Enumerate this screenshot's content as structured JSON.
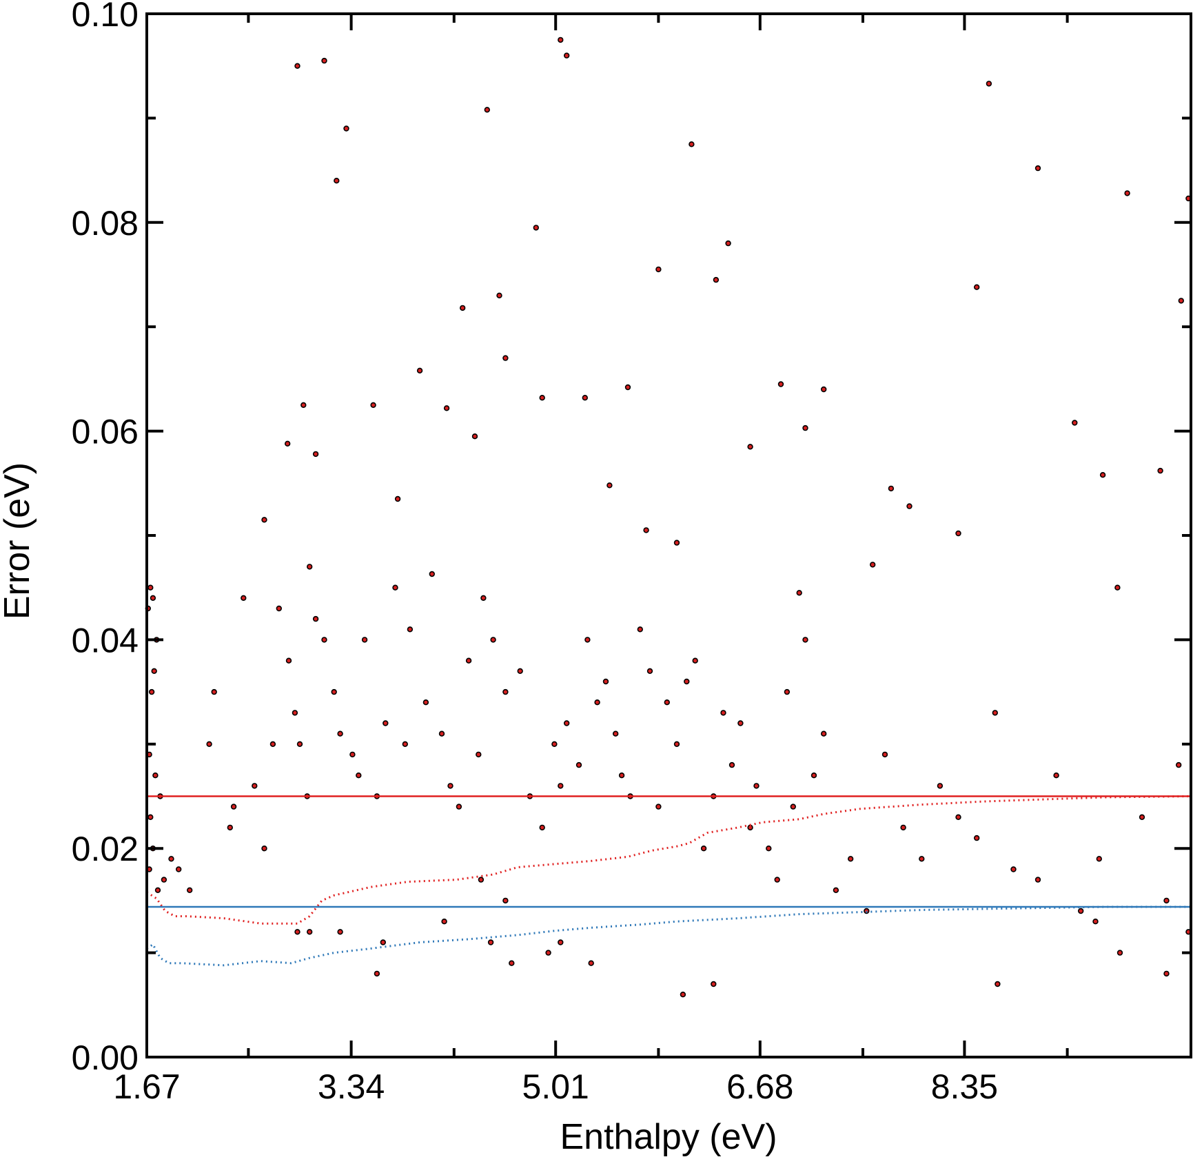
{
  "chart_data": {
    "type": "scatter",
    "xlabel": "Enthalpy (eV)",
    "ylabel": "Error (eV)",
    "xlim": [
      1.67,
      10.2
    ],
    "ylim": [
      0.0,
      0.1
    ],
    "x_ticks": [
      1.67,
      3.34,
      5.01,
      6.68,
      8.35
    ],
    "x_tick_labels": [
      "1.67",
      "3.34",
      "5.01",
      "6.68",
      "8.35"
    ],
    "x_minor_ticks": [
      2.5,
      4.18,
      5.85,
      7.52,
      9.19
    ],
    "y_ticks": [
      0.0,
      0.02,
      0.04,
      0.06,
      0.08,
      0.1
    ],
    "y_tick_labels": [
      "0.00",
      "0.02",
      "0.04",
      "0.06",
      "0.08",
      "0.10"
    ],
    "y_minor_ticks": [
      0.01,
      0.03,
      0.05,
      0.07,
      0.09
    ],
    "grid": false,
    "colors": {
      "points": "#d62020",
      "red_line": "#e02020",
      "blue_line": "#2e78b8"
    },
    "reference_lines": [
      {
        "y": 0.025,
        "color": "#e02020"
      },
      {
        "y": 0.0144,
        "color": "#2e78b8"
      }
    ],
    "series": [
      {
        "kind": "running-average",
        "color": "#e02020",
        "x": [
          1.67,
          1.75,
          1.82,
          1.9,
          2.0,
          2.3,
          2.6,
          2.9,
          3.0,
          3.1,
          3.2,
          3.5,
          3.8,
          4.2,
          4.5,
          4.7,
          5.0,
          5.3,
          5.6,
          5.8,
          6.0,
          6.1,
          6.25,
          6.5,
          6.7,
          7.0,
          7.2,
          7.5,
          8.0,
          8.5,
          9.0,
          9.5,
          10.2
        ],
        "y": [
          0.0158,
          0.0152,
          0.014,
          0.0135,
          0.0135,
          0.0133,
          0.0128,
          0.0128,
          0.0135,
          0.015,
          0.0155,
          0.0163,
          0.0168,
          0.017,
          0.0175,
          0.0182,
          0.0185,
          0.0188,
          0.0192,
          0.0198,
          0.0202,
          0.0205,
          0.0215,
          0.022,
          0.0225,
          0.0228,
          0.0233,
          0.0238,
          0.0242,
          0.0245,
          0.0247,
          0.0249,
          0.025
        ]
      },
      {
        "kind": "running-average",
        "color": "#2e78b8",
        "x": [
          1.67,
          1.72,
          1.78,
          1.85,
          1.95,
          2.3,
          2.6,
          2.85,
          3.0,
          3.2,
          3.5,
          3.9,
          4.3,
          4.7,
          5.0,
          5.3,
          5.7,
          6.0,
          6.5,
          7.0,
          7.5,
          8.0,
          8.5,
          9.0,
          9.5,
          10.2
        ],
        "y": [
          0.0104,
          0.0108,
          0.0095,
          0.009,
          0.009,
          0.0088,
          0.0092,
          0.009,
          0.0095,
          0.01,
          0.0104,
          0.011,
          0.0113,
          0.0117,
          0.0121,
          0.0124,
          0.0127,
          0.013,
          0.0133,
          0.0137,
          0.0139,
          0.0141,
          0.0142,
          0.0143,
          0.0144,
          0.0144
        ]
      }
    ],
    "points": {
      "x": [
        1.7,
        1.68,
        1.72,
        1.75,
        1.73,
        1.71,
        1.69,
        1.74,
        1.78,
        1.7,
        1.72,
        1.69,
        1.76,
        1.81,
        1.87,
        1.93,
        2.02,
        2.18,
        2.22,
        2.35,
        2.38,
        2.46,
        2.55,
        2.63,
        2.7,
        2.75,
        2.83,
        2.88,
        2.92,
        2.98,
        3.0,
        3.05,
        3.12,
        3.2,
        3.25,
        3.35,
        3.4,
        3.45,
        3.55,
        3.62,
        3.7,
        3.78,
        3.82,
        3.95,
        4.08,
        4.15,
        4.22,
        4.3,
        4.38,
        4.42,
        4.5,
        4.6,
        4.72,
        4.8,
        4.9,
        5.0,
        5.05,
        5.1,
        5.2,
        5.27,
        5.35,
        5.42,
        5.5,
        5.55,
        5.62,
        5.7,
        5.78,
        5.85,
        5.92,
        6.0,
        6.08,
        6.15,
        6.22,
        6.3,
        6.38,
        6.45,
        6.52,
        6.6,
        6.65,
        6.75,
        6.82,
        6.9,
        6.95,
        7.05,
        7.12,
        7.2,
        7.3,
        7.42,
        7.55,
        7.7,
        7.85,
        8.0,
        8.15,
        8.3,
        8.45,
        8.6,
        8.75,
        8.95,
        9.1,
        9.3,
        9.45,
        9.6,
        9.8,
        10.0,
        10.1,
        10.18,
        3.0,
        3.25,
        3.6,
        4.1,
        4.4,
        4.6,
        5.05,
        5.3,
        2.9,
        3.55,
        4.95,
        6.05,
        6.3,
        4.48,
        4.65,
        8.62,
        9.42,
        9.62,
        10.0
      ],
      "y": [
        0.045,
        0.043,
        0.044,
        0.04,
        0.037,
        0.035,
        0.029,
        0.027,
        0.025,
        0.023,
        0.02,
        0.018,
        0.016,
        0.017,
        0.019,
        0.018,
        0.016,
        0.03,
        0.035,
        0.022,
        0.024,
        0.044,
        0.026,
        0.02,
        0.03,
        0.043,
        0.038,
        0.033,
        0.03,
        0.025,
        0.047,
        0.042,
        0.04,
        0.035,
        0.031,
        0.029,
        0.027,
        0.04,
        0.025,
        0.032,
        0.045,
        0.03,
        0.041,
        0.034,
        0.031,
        0.026,
        0.024,
        0.038,
        0.029,
        0.044,
        0.04,
        0.035,
        0.037,
        0.025,
        0.022,
        0.03,
        0.026,
        0.032,
        0.028,
        0.04,
        0.034,
        0.036,
        0.031,
        0.027,
        0.025,
        0.041,
        0.037,
        0.024,
        0.034,
        0.03,
        0.036,
        0.038,
        0.02,
        0.025,
        0.033,
        0.028,
        0.032,
        0.022,
        0.026,
        0.02,
        0.017,
        0.035,
        0.024,
        0.04,
        0.027,
        0.031,
        0.016,
        0.019,
        0.014,
        0.029,
        0.022,
        0.019,
        0.026,
        0.023,
        0.021,
        0.033,
        0.018,
        0.017,
        0.027,
        0.014,
        0.019,
        0.045,
        0.023,
        0.015,
        0.028,
        0.012,
        0.012,
        0.012,
        0.011,
        0.013,
        0.017,
        0.015,
        0.011,
        0.009,
        0.012,
        0.008,
        0.01,
        0.006,
        0.007,
        0.011,
        0.009,
        0.007,
        0.013,
        0.01,
        0.008
      ],
      "outliers_x": [
        2.9,
        3.12,
        3.3,
        3.22,
        2.63,
        2.95,
        3.05,
        2.82,
        3.52,
        3.72,
        3.9,
        4.25,
        4.45,
        4.55,
        4.85,
        5.05,
        5.1,
        5.25,
        5.6,
        5.85,
        6.12,
        6.32,
        6.42,
        6.85,
        7.05,
        7.2,
        7.75,
        7.9,
        8.3,
        8.45,
        8.55,
        8.95,
        9.25,
        9.48,
        9.68,
        9.95,
        10.12,
        10.18,
        4.12,
        4.35,
        4.9,
        5.45,
        5.75,
        6.0,
        6.6,
        7.0,
        7.6,
        4.0,
        4.6
      ],
      "outliers_y": [
        0.095,
        0.0955,
        0.089,
        0.084,
        0.0515,
        0.0625,
        0.0578,
        0.0588,
        0.0625,
        0.0535,
        0.0658,
        0.0718,
        0.0908,
        0.073,
        0.0795,
        0.0975,
        0.096,
        0.0632,
        0.0642,
        0.0755,
        0.0875,
        0.0745,
        0.078,
        0.0645,
        0.0603,
        0.064,
        0.0545,
        0.0528,
        0.0502,
        0.0738,
        0.0933,
        0.0852,
        0.0608,
        0.0558,
        0.0828,
        0.0562,
        0.0725,
        0.0823,
        0.0622,
        0.0595,
        0.0632,
        0.0548,
        0.0505,
        0.0493,
        0.0585,
        0.0445,
        0.0472,
        0.0463,
        0.067
      ]
    }
  }
}
